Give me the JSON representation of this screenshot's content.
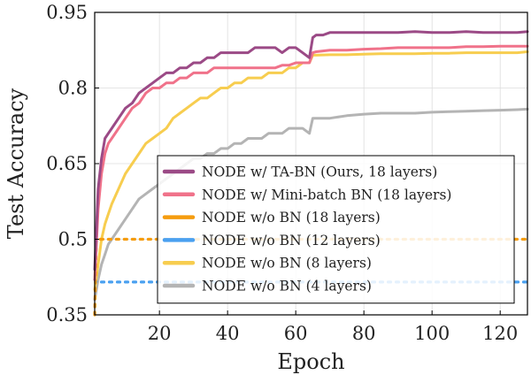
{
  "chart_data": {
    "type": "line",
    "title": "",
    "xlabel": "Epoch",
    "ylabel": "Test Accuracy",
    "xlim": [
      1,
      128
    ],
    "ylim": [
      0.35,
      0.95
    ],
    "xticks": [
      20,
      40,
      60,
      80,
      100,
      120
    ],
    "yticks": [
      0.35,
      0.5,
      0.65,
      0.8,
      0.95
    ],
    "xtick_labels": [
      "20",
      "40",
      "60",
      "80",
      "100",
      "120"
    ],
    "ytick_labels": [
      "0.35",
      "0.5",
      "0.65",
      "0.8",
      "0.95"
    ],
    "grid": true,
    "legend_position": "bottom-right",
    "series": [
      {
        "name": "NODE w/ TA-BN (Ours, 18 layers)",
        "color": "#9b4a86",
        "style": "solid",
        "x": [
          1,
          2,
          3,
          4,
          5,
          6,
          8,
          10,
          12,
          14,
          16,
          18,
          20,
          22,
          24,
          26,
          28,
          30,
          32,
          34,
          36,
          38,
          40,
          42,
          44,
          46,
          48,
          50,
          52,
          54,
          56,
          58,
          60,
          62,
          64,
          65,
          66,
          68,
          70,
          75,
          80,
          85,
          90,
          95,
          100,
          105,
          110,
          115,
          120,
          125,
          128
        ],
        "y": [
          0.44,
          0.6,
          0.66,
          0.7,
          0.71,
          0.72,
          0.74,
          0.76,
          0.77,
          0.79,
          0.8,
          0.81,
          0.82,
          0.83,
          0.83,
          0.84,
          0.84,
          0.85,
          0.85,
          0.86,
          0.86,
          0.87,
          0.87,
          0.87,
          0.87,
          0.87,
          0.88,
          0.88,
          0.88,
          0.88,
          0.87,
          0.88,
          0.88,
          0.87,
          0.86,
          0.9,
          0.905,
          0.905,
          0.91,
          0.91,
          0.91,
          0.91,
          0.91,
          0.912,
          0.91,
          0.91,
          0.912,
          0.91,
          0.91,
          0.91,
          0.912
        ]
      },
      {
        "name": "NODE w/ Mini-batch BN (18 layers)",
        "color": "#f0728a",
        "style": "solid",
        "x": [
          1,
          2,
          3,
          4,
          5,
          6,
          8,
          10,
          12,
          14,
          16,
          18,
          20,
          22,
          24,
          26,
          28,
          30,
          32,
          34,
          36,
          38,
          40,
          42,
          44,
          46,
          48,
          50,
          52,
          54,
          56,
          58,
          60,
          62,
          64,
          65,
          66,
          70,
          75,
          80,
          85,
          90,
          95,
          100,
          105,
          110,
          115,
          120,
          125,
          128
        ],
        "y": [
          0.42,
          0.56,
          0.63,
          0.67,
          0.69,
          0.7,
          0.72,
          0.74,
          0.76,
          0.77,
          0.79,
          0.8,
          0.8,
          0.81,
          0.81,
          0.82,
          0.82,
          0.83,
          0.83,
          0.83,
          0.84,
          0.84,
          0.84,
          0.84,
          0.84,
          0.84,
          0.84,
          0.84,
          0.84,
          0.84,
          0.845,
          0.845,
          0.85,
          0.85,
          0.85,
          0.87,
          0.872,
          0.875,
          0.875,
          0.877,
          0.878,
          0.88,
          0.88,
          0.88,
          0.88,
          0.882,
          0.882,
          0.883,
          0.883,
          0.883
        ]
      },
      {
        "name": "NODE w/o BN (18 layers)",
        "color": "#f59c0f",
        "style": "dotted",
        "x": [
          1,
          1.5,
          2,
          128
        ],
        "y": [
          0.35,
          0.5,
          0.5,
          0.5
        ]
      },
      {
        "name": "NODE w/o BN (12 layers)",
        "color": "#4aa0f0",
        "style": "dotted",
        "x": [
          1,
          1.5,
          2,
          128
        ],
        "y": [
          0.42,
          0.415,
          0.415,
          0.415
        ]
      },
      {
        "name": "NODE w/o BN (8 layers)",
        "color": "#f7cd4f",
        "style": "solid",
        "x": [
          1,
          2,
          3,
          4,
          5,
          6,
          8,
          10,
          12,
          14,
          16,
          18,
          20,
          22,
          24,
          26,
          28,
          30,
          32,
          34,
          36,
          38,
          40,
          42,
          44,
          46,
          48,
          50,
          52,
          54,
          56,
          58,
          60,
          62,
          64,
          65,
          66,
          70,
          75,
          80,
          85,
          90,
          95,
          100,
          105,
          110,
          115,
          120,
          125,
          128
        ],
        "y": [
          0.4,
          0.45,
          0.5,
          0.53,
          0.55,
          0.57,
          0.6,
          0.63,
          0.65,
          0.67,
          0.69,
          0.7,
          0.71,
          0.72,
          0.74,
          0.75,
          0.76,
          0.77,
          0.78,
          0.78,
          0.79,
          0.8,
          0.8,
          0.81,
          0.81,
          0.82,
          0.82,
          0.82,
          0.83,
          0.83,
          0.83,
          0.84,
          0.84,
          0.85,
          0.85,
          0.865,
          0.865,
          0.866,
          0.866,
          0.867,
          0.868,
          0.868,
          0.868,
          0.869,
          0.869,
          0.87,
          0.87,
          0.87,
          0.87,
          0.872
        ]
      },
      {
        "name": "NODE w/o BN (4 layers)",
        "color": "#b4b4b4",
        "style": "solid",
        "x": [
          1,
          2,
          3,
          4,
          5,
          6,
          8,
          10,
          12,
          14,
          16,
          18,
          20,
          22,
          24,
          26,
          28,
          30,
          32,
          34,
          36,
          38,
          40,
          42,
          44,
          46,
          48,
          50,
          52,
          54,
          56,
          58,
          60,
          62,
          64,
          65,
          66,
          70,
          75,
          80,
          85,
          90,
          95,
          100,
          105,
          110,
          115,
          120,
          125,
          128
        ],
        "y": [
          0.38,
          0.42,
          0.45,
          0.47,
          0.49,
          0.5,
          0.52,
          0.54,
          0.56,
          0.58,
          0.59,
          0.6,
          0.61,
          0.62,
          0.63,
          0.64,
          0.65,
          0.66,
          0.66,
          0.67,
          0.67,
          0.68,
          0.68,
          0.69,
          0.69,
          0.7,
          0.7,
          0.7,
          0.71,
          0.71,
          0.71,
          0.72,
          0.72,
          0.72,
          0.71,
          0.74,
          0.74,
          0.74,
          0.745,
          0.748,
          0.75,
          0.75,
          0.75,
          0.752,
          0.753,
          0.754,
          0.755,
          0.756,
          0.757,
          0.758
        ]
      }
    ]
  }
}
